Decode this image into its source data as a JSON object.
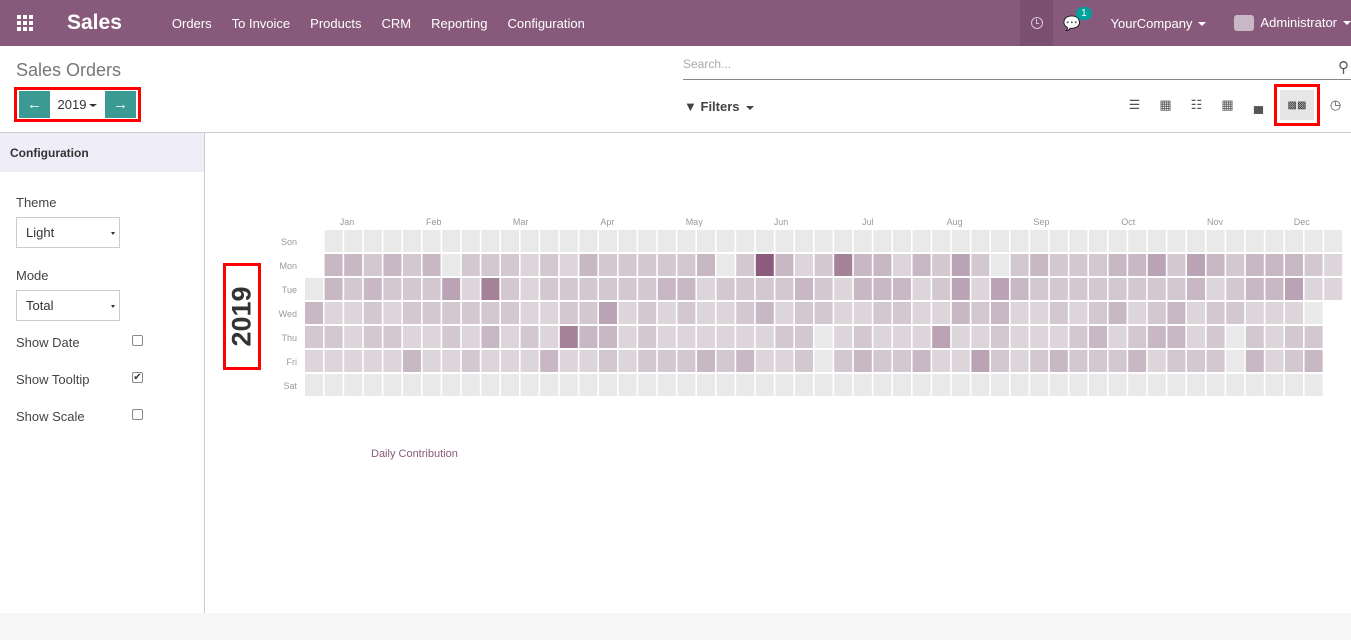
{
  "navbar": {
    "brand": "Sales",
    "menu": [
      "Orders",
      "To Invoice",
      "Products",
      "CRM",
      "Reporting",
      "Configuration"
    ],
    "chat_badge": "1",
    "company": "YourCompany",
    "user": "Administrator",
    "color": "#875a7b"
  },
  "control_panel": {
    "title": "Sales Orders",
    "year": "2019",
    "search_placeholder": "Search...",
    "filters_label": "Filters",
    "views": [
      "list-icon",
      "kanban-icon",
      "calendar-icon",
      "pivot-icon",
      "graph-icon",
      "heatmap-icon",
      "activity-icon"
    ],
    "active_view": "heatmap-icon"
  },
  "sidebar": {
    "header": "Configuration",
    "theme_label": "Theme",
    "theme_value": "Light",
    "mode_label": "Mode",
    "mode_value": "Total",
    "show_date_label": "Show Date",
    "show_date": false,
    "show_tooltip_label": "Show Tooltip",
    "show_tooltip": true,
    "show_scale_label": "Show Scale",
    "show_scale": false
  },
  "chart_data": {
    "type": "heatmap",
    "year_label": "2019",
    "months": [
      "Jan",
      "Feb",
      "Mar",
      "Apr",
      "May",
      "Jun",
      "Jul",
      "Aug",
      "Sep",
      "Oct",
      "Nov",
      "Dec"
    ],
    "weekdays": [
      "Son",
      "Mon",
      "Tue",
      "Wed",
      "Thu",
      "Fri",
      "Sat"
    ],
    "legend": "Daily Contribution",
    "first_day_weekday": 2,
    "palette": [
      "#e8e9e8",
      "#dcd6db",
      "#d3c8d0",
      "#c8b8c4",
      "#b9a3b4",
      "#a48399",
      "#8b5c7e"
    ],
    "weeks_levels": [
      [
        null,
        null,
        0,
        3,
        2,
        1,
        0
      ],
      [
        0,
        3,
        3,
        1,
        2,
        1,
        0
      ],
      [
        0,
        3,
        2,
        1,
        1,
        1,
        0
      ],
      [
        0,
        2,
        3,
        2,
        2,
        1,
        0
      ],
      [
        0,
        3,
        2,
        1,
        2,
        1,
        0
      ],
      [
        0,
        2,
        2,
        2,
        1,
        3,
        0
      ],
      [
        0,
        3,
        2,
        2,
        1,
        1,
        0
      ],
      [
        0,
        0,
        4,
        2,
        2,
        1,
        0
      ],
      [
        0,
        2,
        1,
        2,
        1,
        2,
        0
      ],
      [
        0,
        2,
        5,
        2,
        3,
        1,
        0
      ],
      [
        0,
        2,
        2,
        2,
        1,
        1,
        0
      ],
      [
        0,
        1,
        1,
        1,
        2,
        1,
        0
      ],
      [
        0,
        2,
        2,
        1,
        1,
        3,
        0
      ],
      [
        0,
        1,
        2,
        2,
        5,
        1,
        0
      ],
      [
        0,
        3,
        2,
        2,
        3,
        1,
        0
      ],
      [
        0,
        2,
        2,
        4,
        3,
        2,
        0
      ],
      [
        0,
        2,
        2,
        1,
        1,
        1,
        0
      ],
      [
        0,
        2,
        2,
        2,
        2,
        2,
        0
      ],
      [
        0,
        2,
        3,
        1,
        1,
        2,
        0
      ],
      [
        0,
        2,
        3,
        2,
        1,
        2,
        0
      ],
      [
        0,
        3,
        1,
        1,
        1,
        3,
        0
      ],
      [
        0,
        0,
        2,
        1,
        1,
        2,
        0
      ],
      [
        0,
        2,
        2,
        2,
        1,
        3,
        0
      ],
      [
        0,
        6,
        2,
        3,
        1,
        1,
        0
      ],
      [
        0,
        3,
        2,
        1,
        2,
        1,
        0
      ],
      [
        0,
        1,
        3,
        2,
        2,
        2,
        0
      ],
      [
        0,
        2,
        2,
        2,
        0,
        0,
        0
      ],
      [
        0,
        5,
        1,
        1,
        1,
        2,
        0
      ],
      [
        0,
        3,
        3,
        1,
        2,
        3,
        0
      ],
      [
        0,
        3,
        3,
        2,
        1,
        2,
        0
      ],
      [
        0,
        1,
        3,
        2,
        1,
        2,
        0
      ],
      [
        0,
        3,
        1,
        1,
        1,
        3,
        0
      ],
      [
        0,
        2,
        2,
        1,
        4,
        1,
        0
      ],
      [
        0,
        4,
        4,
        3,
        1,
        1,
        0
      ],
      [
        0,
        2,
        1,
        2,
        1,
        4,
        0
      ],
      [
        0,
        0,
        4,
        3,
        2,
        2,
        0
      ],
      [
        0,
        2,
        3,
        1,
        1,
        1,
        0
      ],
      [
        0,
        3,
        2,
        1,
        1,
        2,
        0
      ],
      [
        0,
        2,
        2,
        2,
        1,
        3,
        0
      ],
      [
        0,
        2,
        2,
        1,
        2,
        2,
        0
      ],
      [
        0,
        2,
        2,
        2,
        3,
        2,
        0
      ],
      [
        0,
        3,
        2,
        3,
        1,
        2,
        0
      ],
      [
        0,
        3,
        2,
        1,
        2,
        3,
        0
      ],
      [
        0,
        4,
        2,
        2,
        3,
        1,
        0
      ],
      [
        0,
        2,
        2,
        3,
        3,
        2,
        0
      ],
      [
        0,
        4,
        3,
        1,
        1,
        2,
        0
      ],
      [
        0,
        3,
        1,
        2,
        2,
        2,
        0
      ],
      [
        0,
        2,
        2,
        2,
        0,
        0,
        0
      ],
      [
        0,
        3,
        3,
        1,
        2,
        3,
        0
      ],
      [
        0,
        3,
        3,
        1,
        1,
        1,
        0
      ],
      [
        0,
        3,
        4,
        1,
        2,
        2,
        0
      ],
      [
        0,
        2,
        1,
        0,
        2,
        3,
        0
      ],
      [
        0,
        1,
        1,
        null,
        null,
        null,
        null
      ]
    ]
  }
}
